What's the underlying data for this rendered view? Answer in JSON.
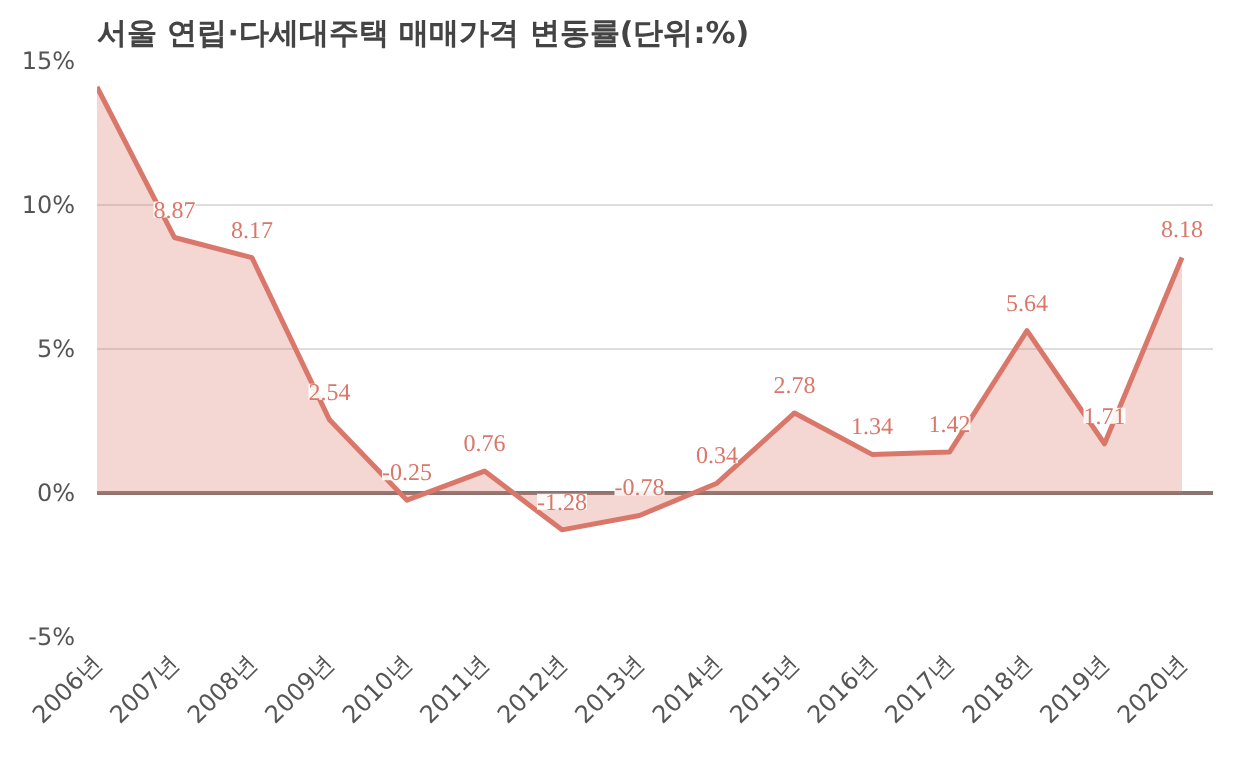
{
  "chart_data": {
    "type": "area",
    "title": "서울 연립·다세대주택 매매가격 변동률(단위:%)",
    "categories": [
      "2006년",
      "2007년",
      "2008년",
      "2009년",
      "2010년",
      "2011년",
      "2012년",
      "2013년",
      "2014년",
      "2015년",
      "2016년",
      "2017년",
      "2018년",
      "2019년",
      "2020년"
    ],
    "series": [
      {
        "color": "#d9786a",
        "values": [
          14.1,
          8.87,
          8.17,
          2.54,
          -0.25,
          0.76,
          -1.28,
          -0.78,
          0.34,
          2.78,
          1.34,
          1.42,
          5.64,
          1.71,
          8.18
        ],
        "value_labels": [
          null,
          "8.87",
          "8.17",
          "2.54",
          "-0.25",
          "0.76",
          "-1.28",
          "-0.78",
          "0.34",
          "2.78",
          "1.34",
          "1.42",
          "5.64",
          "1.71",
          "8.18"
        ]
      }
    ],
    "ylim": [
      -5,
      15
    ],
    "yticks": [
      {
        "value": -5,
        "label": "-5%"
      },
      {
        "value": 0,
        "label": "0%"
      },
      {
        "value": 5,
        "label": "5%"
      },
      {
        "value": 10,
        "label": "10%"
      },
      {
        "value": 15,
        "label": "15%"
      }
    ],
    "grid": "y",
    "ref_lines": [
      {
        "axis": "y",
        "value": 0,
        "color": "#8a7470"
      }
    ]
  }
}
